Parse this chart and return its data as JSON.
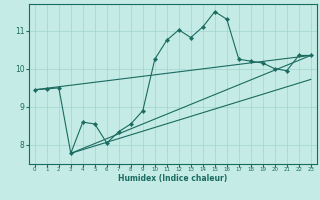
{
  "title": "",
  "xlabel": "Humidex (Indice chaleur)",
  "ylabel": "",
  "xlim": [
    -0.5,
    23.5
  ],
  "ylim": [
    7.5,
    11.7
  ],
  "yticks": [
    8,
    9,
    10,
    11
  ],
  "xticks": [
    0,
    1,
    2,
    3,
    4,
    5,
    6,
    7,
    8,
    9,
    10,
    11,
    12,
    13,
    14,
    15,
    16,
    17,
    18,
    19,
    20,
    21,
    22,
    23
  ],
  "background_color": "#c5ebe6",
  "grid_color": "#a8d8d2",
  "line_color": "#1a6b60",
  "series_main": [
    [
      0,
      9.45
    ],
    [
      1,
      9.47
    ],
    [
      2,
      9.5
    ],
    [
      3,
      7.78
    ],
    [
      4,
      8.6
    ],
    [
      5,
      8.55
    ],
    [
      6,
      8.05
    ],
    [
      7,
      8.35
    ],
    [
      8,
      8.55
    ],
    [
      9,
      8.9
    ],
    [
      10,
      10.25
    ],
    [
      11,
      10.75
    ],
    [
      12,
      11.02
    ],
    [
      13,
      10.82
    ],
    [
      14,
      11.1
    ],
    [
      15,
      11.5
    ],
    [
      16,
      11.3
    ],
    [
      17,
      10.25
    ],
    [
      18,
      10.2
    ],
    [
      19,
      10.15
    ],
    [
      20,
      10.0
    ],
    [
      21,
      9.95
    ],
    [
      22,
      10.35
    ],
    [
      23,
      10.35
    ]
  ],
  "series_line1": [
    [
      0,
      9.45
    ],
    [
      23,
      10.35
    ]
  ],
  "series_line2": [
    [
      3,
      7.78
    ],
    [
      23,
      10.35
    ]
  ],
  "series_line3": [
    [
      3,
      7.78
    ],
    [
      23,
      9.72
    ]
  ]
}
